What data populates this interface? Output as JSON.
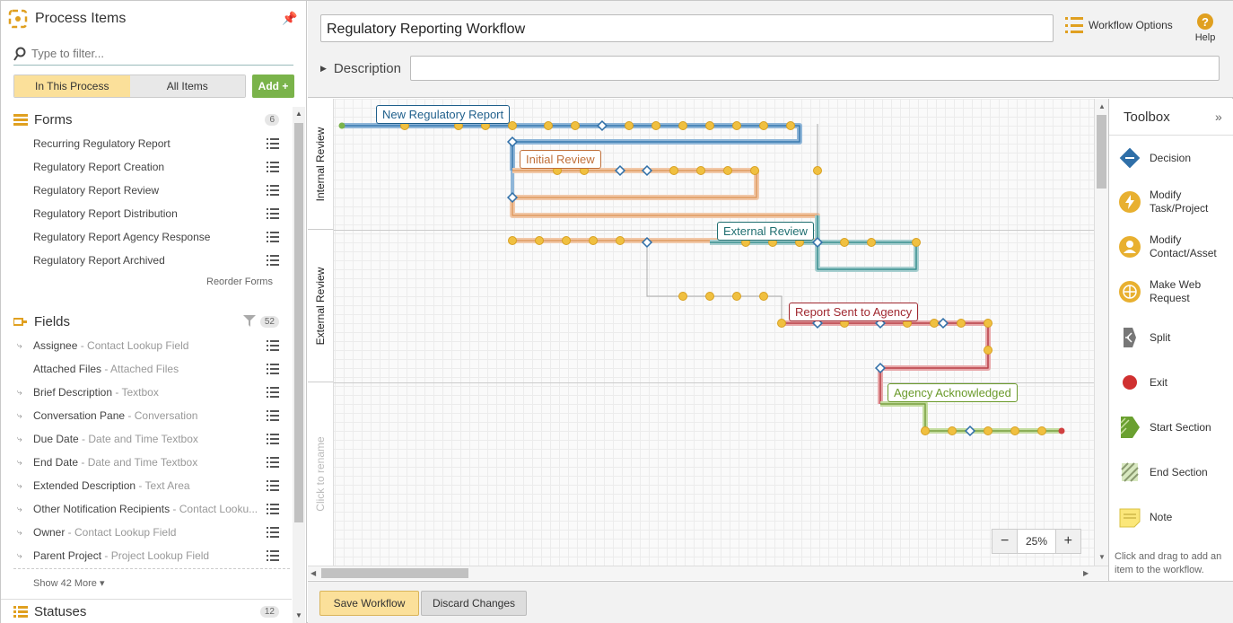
{
  "left_panel": {
    "title": "Process Items",
    "filter_placeholder": "Type to filter...",
    "tab_in_process": "In This Process",
    "tab_all_items": "All Items",
    "add_label": "Add +",
    "forms": {
      "title": "Forms",
      "count": "6",
      "items": [
        "Recurring Regulatory Report",
        "Regulatory Report Creation",
        "Regulatory Report Review",
        "Regulatory Report Distribution",
        "Regulatory Report Agency Response",
        "Regulatory Report Archived"
      ],
      "reorder": "Reorder Forms"
    },
    "fields": {
      "title": "Fields",
      "count": "52",
      "items": [
        {
          "name": "Assignee",
          "type": " - Contact Lookup Field"
        },
        {
          "name": "Attached Files",
          "type": " - Attached Files"
        },
        {
          "name": "Brief Description",
          "type": " - Textbox"
        },
        {
          "name": "Conversation Pane",
          "type": " - Conversation"
        },
        {
          "name": "Due Date",
          "type": " - Date and Time Textbox"
        },
        {
          "name": "End Date",
          "type": " - Date and Time Textbox"
        },
        {
          "name": "Extended Description",
          "type": " - Text Area"
        },
        {
          "name": "Other Notification Recipients",
          "type": " - Contact Looku..."
        },
        {
          "name": "Owner",
          "type": " - Contact Lookup Field"
        },
        {
          "name": "Parent Project",
          "type": " - Project Lookup Field"
        }
      ],
      "show_more": "Show 42 More"
    },
    "statuses": {
      "title": "Statuses",
      "count": "12"
    }
  },
  "header": {
    "workflow_title": "Regulatory Reporting Workflow",
    "workflow_options": "Workflow Options",
    "help": "Help",
    "description_label": "Description"
  },
  "canvas": {
    "lanes": [
      "Internal Review",
      "External Review",
      "Click to rename"
    ],
    "sections": [
      {
        "label": "New Regulatory Report",
        "color": "#1f5f8b"
      },
      {
        "label": "Initial Review",
        "color": "#c0703a"
      },
      {
        "label": "External Review",
        "color": "#1f6e70"
      },
      {
        "label": "Report Sent to Agency",
        "color": "#a02830"
      },
      {
        "label": "Agency Acknowledged",
        "color": "#6a9a2a"
      }
    ],
    "zoom": "25%"
  },
  "toolbox": {
    "title": "Toolbox",
    "collapse": "»",
    "tools": [
      {
        "label": "Decision",
        "icon": "decision-icon"
      },
      {
        "label": "Modify Task/Project",
        "icon": "modify-task-icon"
      },
      {
        "label": "Modify Contact/Asset",
        "icon": "modify-contact-icon"
      },
      {
        "label": "Make Web Request",
        "icon": "web-request-icon"
      },
      {
        "label": "Split",
        "icon": "split-icon"
      },
      {
        "label": "Exit",
        "icon": "exit-icon"
      },
      {
        "label": "Start Section",
        "icon": "start-section-icon"
      },
      {
        "label": "End Section",
        "icon": "end-section-icon"
      },
      {
        "label": "Note",
        "icon": "note-icon"
      }
    ],
    "hint": "Click and drag to add an item to the workflow."
  },
  "footer": {
    "save": "Save Workflow",
    "discard": "Discard Changes"
  },
  "colors": {
    "accent": "#e0a020",
    "add_green": "#7ab34a",
    "tab_active": "#fbe09a"
  }
}
